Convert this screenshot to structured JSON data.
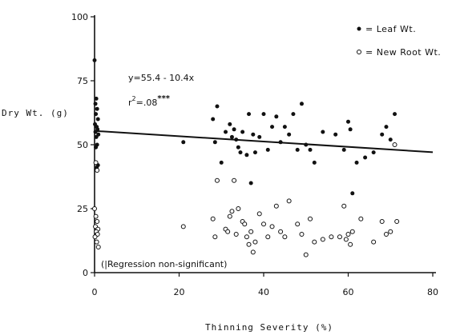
{
  "chart_data": {
    "type": "scatter",
    "title": "",
    "xlabel": "Thinning Severity (%)",
    "ylabel": "Dry Wt. (g)",
    "xlim": [
      0,
      80
    ],
    "ylim": [
      0,
      100
    ],
    "x_ticks": [
      0,
      20,
      40,
      60,
      80
    ],
    "y_ticks": [
      0,
      25,
      50,
      75,
      100
    ],
    "grid": false,
    "legend_position": "top-right",
    "series": [
      {
        "name": "Leaf Wt.",
        "marker": "filled-circle",
        "points": [
          [
            0,
            83
          ],
          [
            0.2,
            66
          ],
          [
            0.4,
            68
          ],
          [
            0.6,
            64
          ],
          [
            0.3,
            62
          ],
          [
            0.8,
            60
          ],
          [
            0.1,
            58
          ],
          [
            0.5,
            57
          ],
          [
            0.7,
            56
          ],
          [
            0.2,
            55
          ],
          [
            0.9,
            54
          ],
          [
            0.4,
            53
          ],
          [
            0.6,
            50
          ],
          [
            0.3,
            49
          ],
          [
            0.8,
            42
          ],
          [
            0.5,
            41
          ],
          [
            21,
            51
          ],
          [
            28,
            60
          ],
          [
            28.5,
            51
          ],
          [
            29,
            65
          ],
          [
            30,
            43
          ],
          [
            31,
            55
          ],
          [
            32,
            58
          ],
          [
            32.5,
            53
          ],
          [
            33,
            56
          ],
          [
            33.5,
            52
          ],
          [
            34,
            49
          ],
          [
            34.5,
            47
          ],
          [
            35,
            55
          ],
          [
            36,
            46
          ],
          [
            36.5,
            62
          ],
          [
            37,
            35
          ],
          [
            37.5,
            54
          ],
          [
            38,
            47
          ],
          [
            39,
            53
          ],
          [
            40,
            62
          ],
          [
            41,
            48
          ],
          [
            42,
            57
          ],
          [
            43,
            61
          ],
          [
            44,
            51
          ],
          [
            45,
            57
          ],
          [
            46,
            54
          ],
          [
            47,
            62
          ],
          [
            48,
            48
          ],
          [
            49,
            66
          ],
          [
            50,
            50
          ],
          [
            51,
            48
          ],
          [
            52,
            43
          ],
          [
            54,
            55
          ],
          [
            57,
            54
          ],
          [
            59,
            48
          ],
          [
            60,
            59
          ],
          [
            60.5,
            56
          ],
          [
            61,
            31
          ],
          [
            62,
            43
          ],
          [
            64,
            45
          ],
          [
            66,
            47
          ],
          [
            68,
            54
          ],
          [
            69,
            57
          ],
          [
            70,
            52
          ],
          [
            71,
            62
          ]
        ]
      },
      {
        "name": "New Root Wt.",
        "marker": "open-circle",
        "points": [
          [
            0,
            25
          ],
          [
            0.3,
            22
          ],
          [
            0.6,
            20
          ],
          [
            0.2,
            18
          ],
          [
            0.8,
            17
          ],
          [
            0.4,
            16
          ],
          [
            0.7,
            15
          ],
          [
            0.1,
            14
          ],
          [
            0.5,
            12
          ],
          [
            0.9,
            10
          ],
          [
            0.3,
            43
          ],
          [
            0.6,
            40
          ],
          [
            21,
            18
          ],
          [
            28,
            21
          ],
          [
            28.5,
            14
          ],
          [
            29,
            36
          ],
          [
            31,
            17
          ],
          [
            31.5,
            16
          ],
          [
            32,
            22
          ],
          [
            32.5,
            24
          ],
          [
            33,
            36
          ],
          [
            33.5,
            15
          ],
          [
            34,
            25
          ],
          [
            35,
            20
          ],
          [
            35.5,
            19
          ],
          [
            36,
            14
          ],
          [
            36.5,
            11
          ],
          [
            37,
            16
          ],
          [
            37.5,
            8
          ],
          [
            38,
            12
          ],
          [
            39,
            23
          ],
          [
            40,
            19
          ],
          [
            41,
            14
          ],
          [
            42,
            18
          ],
          [
            43,
            26
          ],
          [
            44,
            16
          ],
          [
            45,
            14
          ],
          [
            46,
            28
          ],
          [
            48,
            19
          ],
          [
            49,
            15
          ],
          [
            50,
            7
          ],
          [
            51,
            21
          ],
          [
            52,
            12
          ],
          [
            54,
            13
          ],
          [
            56,
            14
          ],
          [
            58,
            14
          ],
          [
            59,
            26
          ],
          [
            59.5,
            13
          ],
          [
            60,
            15
          ],
          [
            60.5,
            11
          ],
          [
            61,
            16
          ],
          [
            63,
            21
          ],
          [
            66,
            12
          ],
          [
            68,
            20
          ],
          [
            69,
            15
          ],
          [
            70,
            16
          ],
          [
            71,
            50
          ],
          [
            71.5,
            20
          ]
        ]
      }
    ],
    "regression": {
      "series": "Leaf Wt.",
      "intercept": 55.4,
      "slope": -0.104,
      "x_range": [
        0,
        80
      ]
    },
    "annotations": {
      "equation": "y=55.4 - 10.4x",
      "r_squared_prefix": "r",
      "r_squared_exp": "2",
      "r_squared_value": "=.08",
      "r_squared_sig": "***",
      "root_note": "(|Regression non-significant)"
    }
  }
}
